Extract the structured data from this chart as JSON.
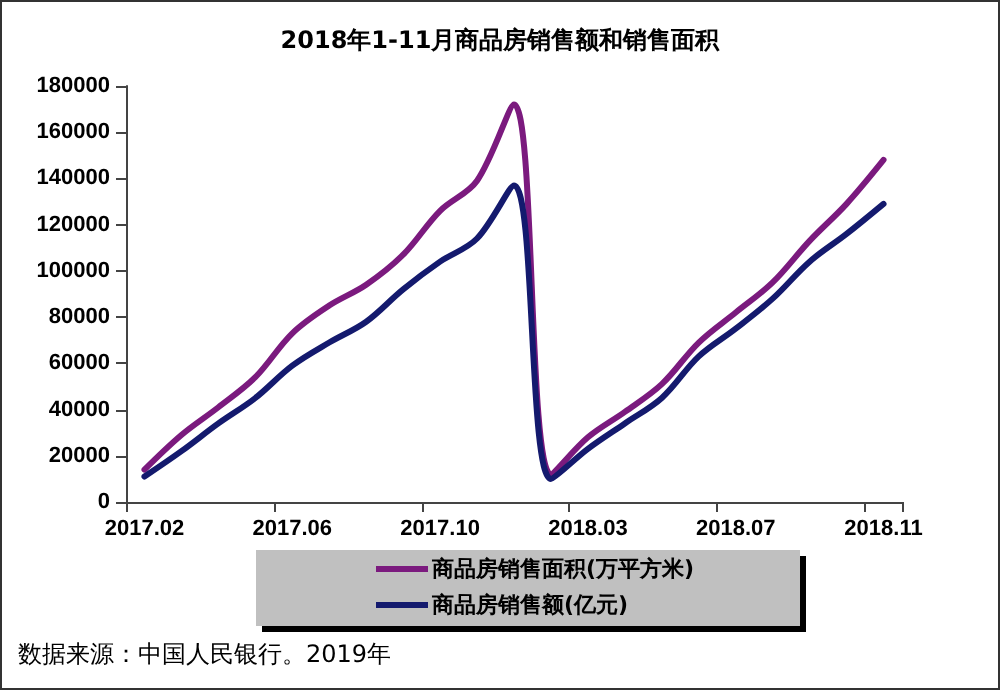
{
  "chart_data": {
    "type": "line",
    "title": "2018年1-11月商品房销售额和销售面积",
    "categories": [
      "2017.02",
      null,
      null,
      null,
      "2017.06",
      null,
      null,
      null,
      "2017.10",
      null,
      null,
      null,
      "2018.03",
      null,
      null,
      null,
      "2018.07",
      null,
      null,
      null,
      "2018.11"
    ],
    "series": [
      {
        "name": "商品房销售面积(万平方米)",
        "color": "#7b1a7e",
        "values": [
          14000,
          29000,
          41000,
          54000,
          73000,
          85000,
          94000,
          107000,
          126000,
          139000,
          172000,
          12000,
          28000,
          39000,
          51000,
          69000,
          82000,
          95000,
          113000,
          129000,
          148000
        ]
      },
      {
        "name": "商品房销售额(亿元)",
        "color": "#141a6e",
        "values": [
          11000,
          22000,
          34000,
          45000,
          59000,
          69000,
          78000,
          92000,
          104000,
          114000,
          137000,
          10000,
          23000,
          34000,
          45000,
          63000,
          75000,
          88000,
          104000,
          116000,
          129000
        ]
      }
    ],
    "ylim": [
      0,
      180000
    ],
    "yticks": [
      0,
      20000,
      40000,
      60000,
      80000,
      100000,
      120000,
      140000,
      160000,
      180000
    ],
    "grid": false,
    "legend": "bottom",
    "marker": "none",
    "line_style": "solid",
    "annotations": [
      "数据来源：中国人民银行。2019年"
    ]
  }
}
